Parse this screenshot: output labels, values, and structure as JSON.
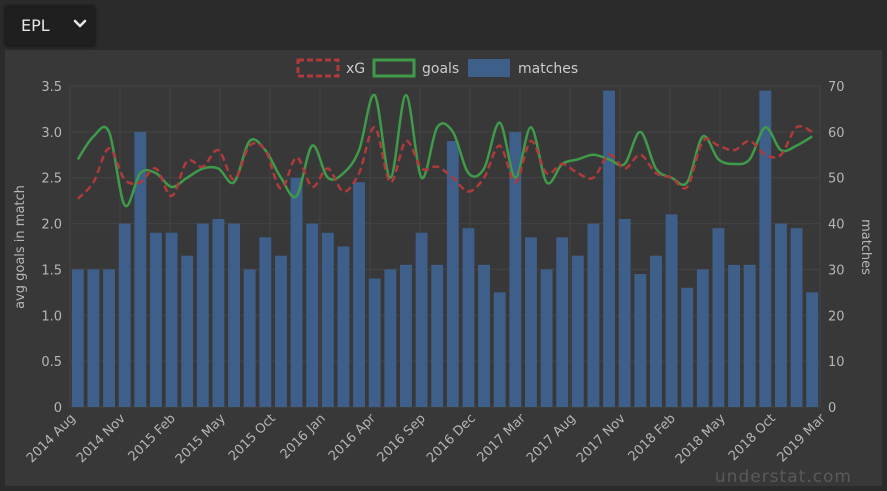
{
  "selector": {
    "league": "EPL"
  },
  "watermark": "understat.com",
  "colors": {
    "xg": "#b03a3a",
    "goals": "#3f9a4a",
    "matches": "#3e5f8a",
    "axis_text": "#b5b5b5",
    "grid": "#444444"
  },
  "chart_data": {
    "type": "bar+line",
    "legend": [
      "xG",
      "goals",
      "matches"
    ],
    "ylabel_left": "avg goals in match",
    "ylabel_right": "matches",
    "ylim_left": [
      0,
      3.5
    ],
    "ylim_right": [
      0,
      70
    ],
    "yticks_left": [
      "0",
      "0.5",
      "1.0",
      "1.5",
      "2.0",
      "2.5",
      "3.0",
      "3.5"
    ],
    "yticks_right": [
      "0",
      "10",
      "20",
      "30",
      "40",
      "50",
      "60",
      "70"
    ],
    "xtick_labels": [
      "2014 Aug",
      "2014 Nov",
      "2015 Feb",
      "2015 May",
      "2015 Oct",
      "2016 Jan",
      "2016 Apr",
      "2016 Sep",
      "2016 Dec",
      "2017 Mar",
      "2017 Aug",
      "2017 Nov",
      "2018 Feb",
      "2018 May",
      "2018 Oct",
      "2019 Mar"
    ],
    "matches": [
      30,
      30,
      30,
      40,
      60,
      38,
      38,
      33,
      40,
      41,
      40,
      30,
      37,
      33,
      50,
      40,
      38,
      35,
      49,
      28,
      30,
      31,
      38,
      31,
      58,
      39,
      31,
      25,
      60,
      37,
      30,
      37,
      33,
      40,
      69,
      41,
      29,
      33,
      42,
      26,
      30,
      39,
      31,
      31,
      69,
      40,
      39,
      25
    ],
    "xG": [
      2.27,
      2.45,
      2.82,
      2.48,
      2.45,
      2.6,
      2.3,
      2.68,
      2.62,
      2.8,
      2.48,
      2.85,
      2.8,
      2.38,
      2.72,
      2.4,
      2.6,
      2.35,
      2.55,
      3.05,
      2.45,
      2.9,
      2.6,
      2.62,
      2.5,
      2.35,
      2.5,
      2.85,
      2.45,
      2.9,
      2.55,
      2.65,
      2.55,
      2.5,
      2.75,
      2.6,
      2.75,
      2.55,
      2.5,
      2.4,
      2.9,
      2.85,
      2.8,
      2.9,
      2.75,
      2.75,
      3.05,
      3.0
    ],
    "goals": [
      2.7,
      2.95,
      3.0,
      2.2,
      2.55,
      2.55,
      2.4,
      2.5,
      2.6,
      2.6,
      2.45,
      2.9,
      2.8,
      2.5,
      2.3,
      2.85,
      2.5,
      2.55,
      2.8,
      3.4,
      2.5,
      3.4,
      2.5,
      3.05,
      3.0,
      2.55,
      2.6,
      3.1,
      2.5,
      3.05,
      2.45,
      2.65,
      2.7,
      2.75,
      2.7,
      2.65,
      3.0,
      2.6,
      2.5,
      2.45,
      2.95,
      2.7,
      2.65,
      2.7,
      3.05,
      2.8,
      2.85,
      2.95
    ]
  }
}
